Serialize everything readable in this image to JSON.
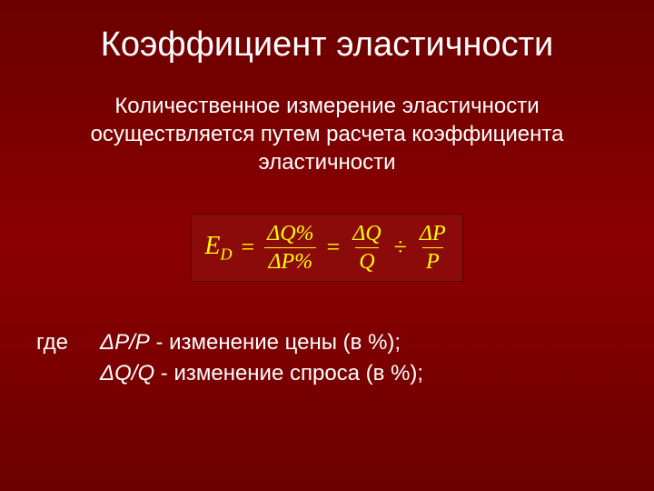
{
  "title": "Коэффициент эластичности",
  "description": "Количественное измерение эластичности осуществляется путем расчета коэффициента эластичности",
  "formula": {
    "lhs_var": "E",
    "lhs_sub": "D",
    "eq": "=",
    "frac1_num": "ΔQ%",
    "frac1_den": "ΔP%",
    "frac2_num": "ΔQ",
    "frac2_den": "Q",
    "div": "÷",
    "frac3_num": "ΔP",
    "frac3_den": "P",
    "text_color": "#ffff00",
    "box_bg": "#8b0a0a",
    "box_border": "#5a0000"
  },
  "definitions": {
    "where_label": "где",
    "line1_sym": "ΔP/P",
    "line1_text": " - изменение цены (в %);",
    "line2_sym": "ΔQ/Q",
    "line2_text": " - изменение спроса (в %);"
  },
  "styling": {
    "background_gradient": [
      "#6b0000",
      "#8b0000",
      "#6b0000"
    ],
    "text_color": "#ffffff",
    "title_fontsize": 38,
    "body_fontsize": 24,
    "formula_fontsize": 28
  }
}
